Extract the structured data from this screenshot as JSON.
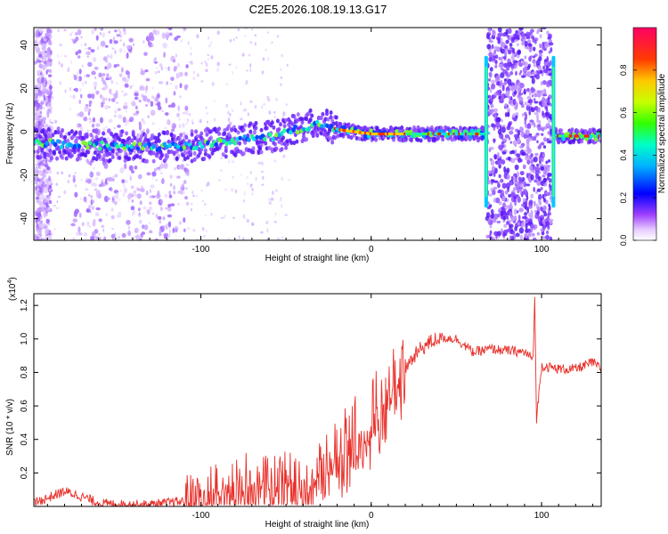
{
  "title": "C2E5.2026.108.19.13.G17",
  "chart_data": [
    {
      "type": "heatmap",
      "name": "spectrogram",
      "xlabel": "Height of straight line (km)",
      "ylabel": "Frequency (Hz)",
      "xlim": [
        -198,
        135
      ],
      "ylim": [
        -50,
        48
      ],
      "xticks": [
        -100,
        0,
        100
      ],
      "xtick_labels": [
        "-100",
        "0",
        "100"
      ],
      "yticks": [
        -40,
        -20,
        0,
        20,
        40
      ],
      "ytick_labels": [
        "-40",
        "-20",
        "0",
        "20",
        "40"
      ],
      "colorbar": {
        "label": "Normalized spectral amplitude",
        "range": [
          0,
          1
        ],
        "ticks": [
          0.0,
          0.2,
          0.4,
          0.6,
          0.8
        ],
        "tick_labels": [
          "0.0",
          "0.2",
          "0.4",
          "0.6",
          "0.8"
        ]
      },
      "ridge": {
        "x": [
          -198,
          -170,
          -140,
          -110,
          -90,
          -70,
          -55,
          -40,
          -30,
          -20,
          0,
          30,
          66,
          70,
          105,
          110,
          135
        ],
        "freq": [
          -5,
          -6,
          -7,
          -7,
          -5,
          -3,
          -2,
          2,
          4,
          1,
          -1,
          -1,
          -1,
          0,
          -1,
          -2,
          -2
        ]
      },
      "bursts": [
        {
          "x_start": 68,
          "x_end": 106,
          "note": "broadband noise"
        },
        {
          "x_start": -197,
          "x_end": -188,
          "note": "broadband noise"
        },
        {
          "x_start": -175,
          "x_end": -108,
          "note": "broadband noise"
        }
      ]
    },
    {
      "type": "line",
      "name": "snr",
      "xlabel": "Height of straight line (km)",
      "ylabel": "SNR (10 * v/v)",
      "y_scale_label": "(x10",
      "y_scale_exp": "4",
      "y_scale_close": ")",
      "xlim": [
        -198,
        135
      ],
      "ylim": [
        0,
        1.27
      ],
      "xticks": [
        -100,
        0,
        100
      ],
      "xtick_labels": [
        "-100",
        "0",
        "100"
      ],
      "yticks": [
        0.2,
        0.4,
        0.6,
        0.8,
        1.0,
        1.2
      ],
      "ytick_labels": [
        "0.2",
        "0.4",
        "0.6",
        "0.8",
        "1.0",
        "1.2"
      ],
      "color": "#e8302a",
      "series": [
        {
          "name": "SNR",
          "x": [
            -198,
            -190,
            -180,
            -170,
            -160,
            -150,
            -140,
            -130,
            -120,
            -110,
            -100,
            -95,
            -90,
            -80,
            -70,
            -60,
            -50,
            -40,
            -35,
            -30,
            -25,
            -20,
            -15,
            -10,
            -5,
            0,
            5,
            10,
            20,
            30,
            40,
            50,
            55,
            60,
            70,
            80,
            90,
            95,
            96,
            97,
            100,
            110,
            120,
            130,
            135
          ],
          "y": [
            0.02,
            0.05,
            0.09,
            0.06,
            0.02,
            0.01,
            0.01,
            0.01,
            0.02,
            0.03,
            0.06,
            0.08,
            0.12,
            0.17,
            0.16,
            0.15,
            0.18,
            0.15,
            0.17,
            0.22,
            0.3,
            0.35,
            0.4,
            0.45,
            0.48,
            0.55,
            0.62,
            0.72,
            0.83,
            0.95,
            1.01,
            1.0,
            0.96,
            0.92,
            0.94,
            0.93,
            0.92,
            0.88,
            1.25,
            0.52,
            0.84,
            0.82,
            0.82,
            0.86,
            0.82
          ]
        }
      ]
    }
  ]
}
